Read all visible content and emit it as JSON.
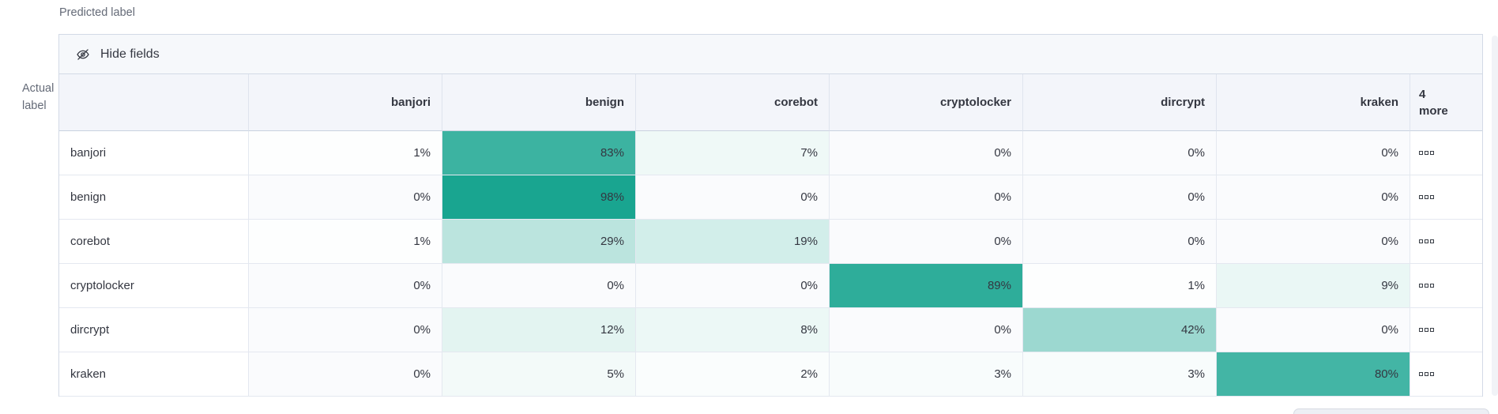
{
  "axis": {
    "predicted": "Predicted label",
    "actual_line1": "Actual",
    "actual_line2": "label"
  },
  "toolbar": {
    "hide_fields_label": "Hide fields",
    "icon": "eye-closed-icon"
  },
  "matrix": {
    "type": "heatmap",
    "columns": [
      "banjori",
      "benign",
      "corebot",
      "cryptolocker",
      "dircrypt",
      "kraken"
    ],
    "more_column": {
      "line1": "4",
      "line2": "more",
      "cell_icon": "boxes-horizontal-icon"
    },
    "rows": [
      {
        "label": "banjori",
        "values": [
          1,
          83,
          7,
          0,
          0,
          0
        ]
      },
      {
        "label": "benign",
        "values": [
          0,
          98,
          0,
          0,
          0,
          0
        ]
      },
      {
        "label": "corebot",
        "values": [
          1,
          29,
          19,
          0,
          0,
          0
        ]
      },
      {
        "label": "cryptolocker",
        "values": [
          0,
          0,
          0,
          89,
          1,
          9
        ]
      },
      {
        "label": "dircrypt",
        "values": [
          0,
          12,
          8,
          0,
          42,
          0
        ]
      },
      {
        "label": "kraken",
        "values": [
          0,
          5,
          2,
          3,
          3,
          80
        ]
      }
    ],
    "value_suffix": "%"
  },
  "colors": {
    "heatmap_base": "#14A38E",
    "zero_cell": "#FAFBFD",
    "header_bg": "#F3F5FA",
    "toolbar_bg": "#F6F8FB",
    "border_outer": "#D3DAE6",
    "border_inner": "#E4E8F0",
    "text": "#343741",
    "subdued_text": "#646A77"
  }
}
